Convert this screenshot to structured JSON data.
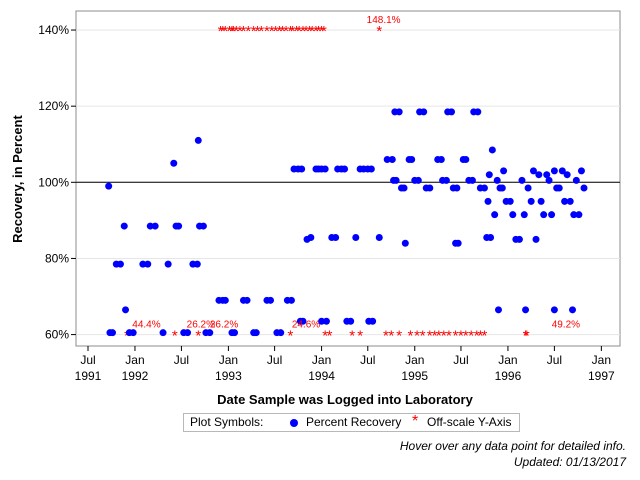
{
  "chart_data": {
    "type": "scatter",
    "title": "",
    "xlabel": "Date Sample was Logged into Laboratory",
    "ylabel": "Recovery, in Percent",
    "xlim": [
      "1991-05-15",
      "1997-03-15"
    ],
    "ylim": [
      57,
      145
    ],
    "yticks": [
      {
        "value": 60,
        "label": "60%"
      },
      {
        "value": 80,
        "label": "80%"
      },
      {
        "value": 100,
        "label": "100%"
      },
      {
        "value": 120,
        "label": "120%"
      },
      {
        "value": 140,
        "label": "140%"
      }
    ],
    "xticks": [
      {
        "date": "1991-07-01",
        "month": "Jul",
        "year": "1991"
      },
      {
        "date": "1992-01-01",
        "month": "Jan",
        "year": "1992"
      },
      {
        "date": "1992-07-01",
        "month": "Jul",
        "year": ""
      },
      {
        "date": "1993-01-01",
        "month": "Jan",
        "year": "1993"
      },
      {
        "date": "1993-07-01",
        "month": "Jul",
        "year": ""
      },
      {
        "date": "1994-01-01",
        "month": "Jan",
        "year": "1994"
      },
      {
        "date": "1994-07-01",
        "month": "Jul",
        "year": ""
      },
      {
        "date": "1995-01-01",
        "month": "Jan",
        "year": "1995"
      },
      {
        "date": "1995-07-01",
        "month": "Jul",
        "year": ""
      },
      {
        "date": "1996-01-01",
        "month": "Jan",
        "year": "1996"
      },
      {
        "date": "1996-07-01",
        "month": "Jul",
        "year": ""
      },
      {
        "date": "1997-01-01",
        "month": "Jan",
        "year": "1997"
      }
    ],
    "reference_line": {
      "y": 100
    },
    "colors": {
      "percent_recovery": "#0000ff",
      "off_scale": "#ff0000",
      "grid": "#e6e6e6"
    },
    "series": [
      {
        "name": "Percent Recovery",
        "marker": "dot",
        "points": [
          [
            "1991-09-20",
            99
          ],
          [
            "1991-09-25",
            60.5
          ],
          [
            "1991-10-05",
            60.5
          ],
          [
            "1991-10-20",
            78.5
          ],
          [
            "1991-11-05",
            78.5
          ],
          [
            "1991-11-20",
            88.5
          ],
          [
            "1991-11-25",
            66.5
          ],
          [
            "1991-12-10",
            60.5
          ],
          [
            "1991-12-25",
            60.5
          ],
          [
            "1992-02-01",
            78.5
          ],
          [
            "1992-02-20",
            78.5
          ],
          [
            "1992-03-01",
            88.5
          ],
          [
            "1992-03-20",
            88.5
          ],
          [
            "1992-04-20",
            60.5
          ],
          [
            "1992-05-10",
            78.5
          ],
          [
            "1992-06-01",
            105
          ],
          [
            "1992-06-10",
            88.5
          ],
          [
            "1992-06-20",
            88.5
          ],
          [
            "1992-07-10",
            60.5
          ],
          [
            "1992-07-25",
            60.5
          ],
          [
            "1992-08-15",
            78.5
          ],
          [
            "1992-09-01",
            78.5
          ],
          [
            "1992-09-05",
            111
          ],
          [
            "1992-09-10",
            88.5
          ],
          [
            "1992-09-25",
            88.5
          ],
          [
            "1992-10-05",
            60.5
          ],
          [
            "1992-10-20",
            60.5
          ],
          [
            "1992-11-25",
            69
          ],
          [
            "1992-12-10",
            69
          ],
          [
            "1992-12-20",
            69
          ],
          [
            "1993-01-15",
            60.5
          ],
          [
            "1993-01-25",
            60.5
          ],
          [
            "1993-03-01",
            69
          ],
          [
            "1993-03-15",
            69
          ],
          [
            "1993-04-10",
            60.5
          ],
          [
            "1993-04-20",
            60.5
          ],
          [
            "1993-06-01",
            69
          ],
          [
            "1993-06-15",
            69
          ],
          [
            "1993-07-10",
            60.5
          ],
          [
            "1993-07-25",
            60.5
          ],
          [
            "1993-08-20",
            69
          ],
          [
            "1993-09-05",
            69
          ],
          [
            "1993-09-15",
            103.5
          ],
          [
            "1993-10-01",
            103.5
          ],
          [
            "1993-10-15",
            103.5
          ],
          [
            "1993-10-10",
            63.5
          ],
          [
            "1993-10-20",
            63.5
          ],
          [
            "1993-11-05",
            85
          ],
          [
            "1993-11-20",
            85.5
          ],
          [
            "1993-12-10",
            103.5
          ],
          [
            "1993-12-20",
            103.5
          ],
          [
            "1994-01-01",
            103.5
          ],
          [
            "1994-01-15",
            103.5
          ],
          [
            "1994-01-01",
            63.5
          ],
          [
            "1994-01-20",
            63.5
          ],
          [
            "1994-02-10",
            85.5
          ],
          [
            "1994-02-25",
            85.5
          ],
          [
            "1994-03-05",
            103.5
          ],
          [
            "1994-03-20",
            103.5
          ],
          [
            "1994-04-01",
            103.5
          ],
          [
            "1994-04-10",
            63.5
          ],
          [
            "1994-04-25",
            63.5
          ],
          [
            "1994-05-15",
            85.5
          ],
          [
            "1994-06-01",
            103.5
          ],
          [
            "1994-06-15",
            103.5
          ],
          [
            "1994-07-01",
            103.5
          ],
          [
            "1994-07-15",
            103.5
          ],
          [
            "1994-07-05",
            63.5
          ],
          [
            "1994-07-20",
            63.5
          ],
          [
            "1994-08-15",
            85.5
          ],
          [
            "1994-09-15",
            106
          ],
          [
            "1994-10-05",
            106
          ],
          [
            "1994-10-10",
            100.5
          ],
          [
            "1994-10-20",
            100.5
          ],
          [
            "1994-10-15",
            118.5
          ],
          [
            "1994-11-01",
            118.5
          ],
          [
            "1994-11-10",
            98.5
          ],
          [
            "1994-11-20",
            98.5
          ],
          [
            "1994-11-25",
            84
          ],
          [
            "1994-12-10",
            106
          ],
          [
            "1994-12-20",
            106
          ],
          [
            "1995-01-01",
            100.5
          ],
          [
            "1995-01-15",
            100.5
          ],
          [
            "1995-01-20",
            118.5
          ],
          [
            "1995-02-05",
            118.5
          ],
          [
            "1995-02-15",
            98.5
          ],
          [
            "1995-03-01",
            98.5
          ],
          [
            "1995-04-01",
            106
          ],
          [
            "1995-04-15",
            106
          ],
          [
            "1995-04-20",
            100.5
          ],
          [
            "1995-05-05",
            100.5
          ],
          [
            "1995-05-10",
            118.5
          ],
          [
            "1995-05-25",
            118.5
          ],
          [
            "1995-06-01",
            98.5
          ],
          [
            "1995-06-15",
            98.5
          ],
          [
            "1995-06-10",
            84
          ],
          [
            "1995-06-20",
            84
          ],
          [
            "1995-07-10",
            106
          ],
          [
            "1995-07-20",
            106
          ],
          [
            "1995-08-01",
            100.5
          ],
          [
            "1995-08-15",
            100.5
          ],
          [
            "1995-08-20",
            118.5
          ],
          [
            "1995-09-05",
            118.5
          ],
          [
            "1995-09-15",
            98.5
          ],
          [
            "1995-10-01",
            98.5
          ],
          [
            "1995-10-10",
            85.5
          ],
          [
            "1995-10-25",
            85.5
          ],
          [
            "1995-10-15",
            95
          ],
          [
            "1995-10-20",
            102
          ],
          [
            "1995-11-01",
            108.5
          ],
          [
            "1995-11-10",
            91.5
          ],
          [
            "1995-11-20",
            100.5
          ],
          [
            "1995-11-25",
            66.5
          ],
          [
            "1995-12-01",
            98.5
          ],
          [
            "1995-12-10",
            98.5
          ],
          [
            "1995-12-15",
            103
          ],
          [
            "1995-12-25",
            95
          ],
          [
            "1996-01-10",
            95
          ],
          [
            "1996-01-20",
            91.5
          ],
          [
            "1996-02-01",
            85
          ],
          [
            "1996-02-15",
            85
          ],
          [
            "1996-02-25",
            100.5
          ],
          [
            "1996-03-05",
            91.5
          ],
          [
            "1996-03-10",
            66.5
          ],
          [
            "1996-03-20",
            98.5
          ],
          [
            "1996-04-01",
            95
          ],
          [
            "1996-04-10",
            103
          ],
          [
            "1996-04-20",
            85
          ],
          [
            "1996-05-01",
            102
          ],
          [
            "1996-05-10",
            95
          ],
          [
            "1996-05-20",
            91.5
          ],
          [
            "1996-06-01",
            102
          ],
          [
            "1996-06-10",
            100.5
          ],
          [
            "1996-06-20",
            91.5
          ],
          [
            "1996-07-01",
            66.5
          ],
          [
            "1996-07-01",
            103
          ],
          [
            "1996-07-10",
            98.5
          ],
          [
            "1996-07-20",
            98.5
          ],
          [
            "1996-08-01",
            103
          ],
          [
            "1996-08-10",
            95
          ],
          [
            "1996-08-20",
            102
          ],
          [
            "1996-09-01",
            95
          ],
          [
            "1996-09-10",
            66.5
          ],
          [
            "1996-09-15",
            91.5
          ],
          [
            "1996-09-25",
            100.5
          ],
          [
            "1996-10-05",
            91.5
          ],
          [
            "1996-10-15",
            103
          ],
          [
            "1996-10-25",
            98.5
          ]
        ]
      },
      {
        "name": "Off-scale Y-Axis",
        "marker": "star",
        "points_at_top": [
          "1993-01-05",
          "1993-01-15",
          "1993-01-20",
          "1993-02-01",
          "1993-02-15",
          "1993-03-01",
          "1993-03-20",
          "1993-04-10",
          "1993-04-25",
          "1993-05-10",
          "1993-06-01",
          "1993-06-20",
          "1993-07-05",
          "1993-07-20",
          "1993-08-01",
          "1993-08-15",
          "1993-09-01",
          "1993-09-10",
          "1993-09-25",
          "1993-10-05",
          "1993-10-20",
          "1993-11-01",
          "1993-11-15",
          "1993-11-25",
          "1993-12-10",
          "1993-12-20",
          "1994-01-01",
          "1994-01-10",
          "1992-12-01",
          "1992-12-10",
          "1992-12-20",
          "1994-08-15"
        ],
        "points_at_bottom": [
          "1991-12-01",
          "1992-06-05",
          "1992-09-05",
          "1993-09-01",
          "1994-01-15",
          "1994-02-01",
          "1994-05-01",
          "1994-06-01",
          "1994-09-10",
          "1994-10-01",
          "1994-11-01",
          "1994-12-15",
          "1995-01-10",
          "1995-02-01",
          "1995-03-01",
          "1995-03-20",
          "1995-04-05",
          "1995-04-25",
          "1995-05-15",
          "1995-06-10",
          "1995-07-01",
          "1995-07-20",
          "1995-08-10",
          "1995-09-01",
          "1995-09-15",
          "1995-10-01",
          "1996-03-10",
          "1996-03-15"
        ],
        "labels_top": [
          {
            "date": "1994-09-01",
            "text": "148.1%"
          }
        ],
        "labels_bottom": [
          {
            "date": "1992-02-15",
            "text": "44.4%"
          },
          {
            "date": "1992-09-15",
            "text": "26.2%"
          },
          {
            "date": "1992-12-15",
            "text": "26.2%"
          },
          {
            "date": "1993-11-01",
            "text": "24.6%"
          },
          {
            "date": "1996-08-15",
            "text": "49.2%"
          }
        ]
      }
    ]
  },
  "legend": {
    "title": "Plot Symbols:",
    "items": [
      "Percent Recovery",
      "Off-scale Y-Axis"
    ]
  },
  "notes": {
    "hover": "Hover over any data point for detailed info.",
    "updated": "Updated: 01/13/2017"
  }
}
